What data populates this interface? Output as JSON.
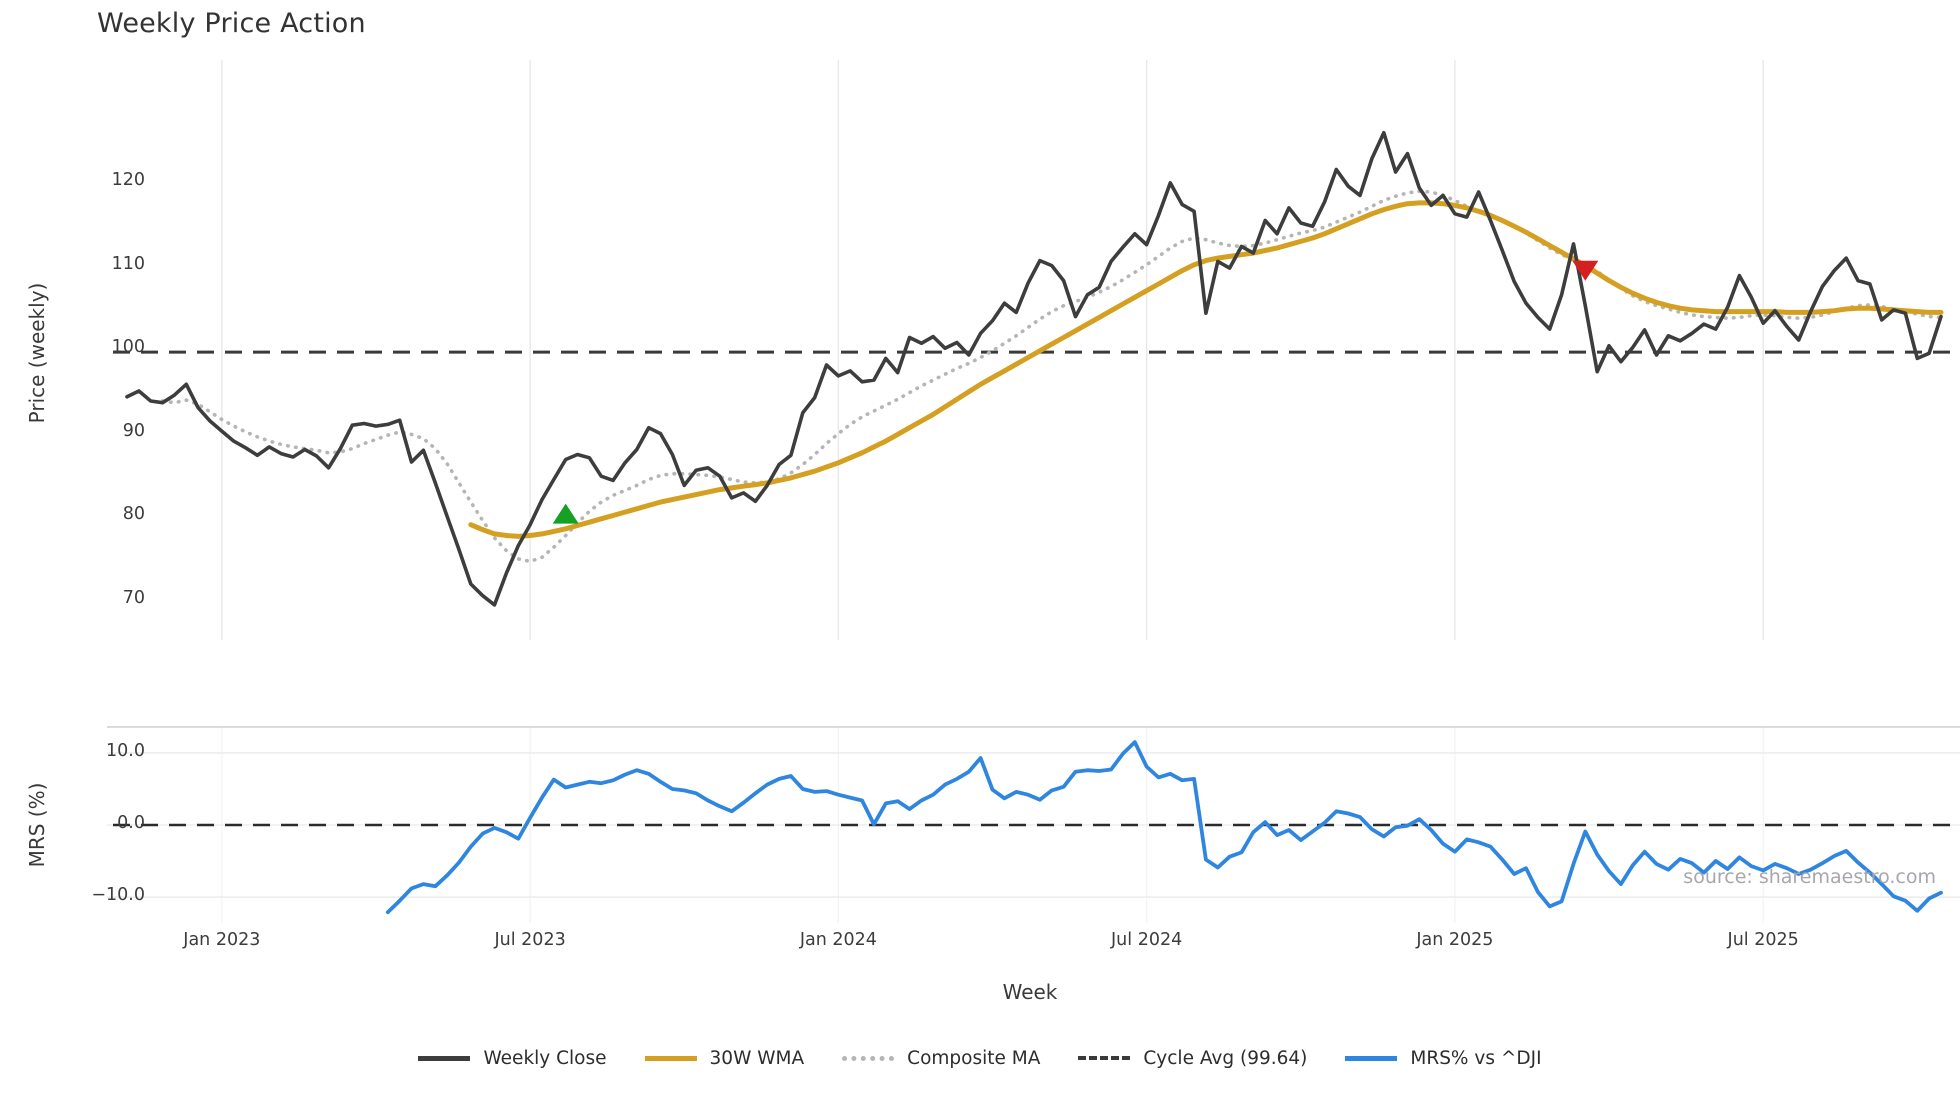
{
  "title": "Weekly Price Action",
  "watermark": "source: sharemaestro.com",
  "colors": {
    "weekly_close": "#3d3d3d",
    "wma_30w": "#d5a021",
    "composite_ma": "#b5b5b5",
    "cycle_avg": "#3a3a3a",
    "mrs_line": "#2f86e0",
    "buy_marker": "#16a125",
    "sell_marker": "#d61f1f",
    "grid": "#e8e8e8"
  },
  "legend": {
    "items": [
      {
        "label": "Weekly Close",
        "color": "#3d3d3d",
        "style": "solid"
      },
      {
        "label": "30W WMA",
        "color": "#d5a021",
        "style": "solid"
      },
      {
        "label": "Composite MA",
        "color": "#b5b5b5",
        "style": "dotted"
      },
      {
        "label": "Cycle Avg (99.64)",
        "color": "#3a3a3a",
        "style": "dashed"
      },
      {
        "label": "MRS% vs ^DJI",
        "color": "#2f86e0",
        "style": "solid"
      }
    ]
  },
  "chart_data": {
    "type": "line",
    "title": "Weekly Price Action",
    "n_points": 154,
    "x_axis": {
      "label": "Week",
      "ticks": [
        {
          "index": 8,
          "label": "Jan 2023"
        },
        {
          "index": 34,
          "label": "Jul 2023"
        },
        {
          "index": 60,
          "label": "Jan 2024"
        },
        {
          "index": 86,
          "label": "Jul 2024"
        },
        {
          "index": 112,
          "label": "Jan 2025"
        },
        {
          "index": 138,
          "label": "Jul 2025"
        }
      ]
    },
    "panels": [
      {
        "name": "price",
        "ylabel": "Price (weekly)",
        "ylim": [
          65.2,
          134.6
        ],
        "grid": "x",
        "yticks": [
          {
            "value": 70,
            "label": "70"
          },
          {
            "value": 80,
            "label": "80"
          },
          {
            "value": 90,
            "label": "90"
          },
          {
            "value": 100,
            "label": "100"
          },
          {
            "value": 110,
            "label": "110"
          },
          {
            "value": 120,
            "label": "120"
          }
        ],
        "series": [
          {
            "name": "Weekly Close",
            "color": "#3d3d3d",
            "style": "solid",
            "width": 3.6,
            "start_index": 0,
            "values": [
              94.3,
              95.0,
              93.8,
              93.6,
              94.5,
              95.8,
              93.0,
              91.4,
              90.2,
              89.0,
              88.2,
              87.3,
              88.3,
              87.5,
              87.1,
              88.0,
              87.2,
              85.8,
              88.1,
              90.9,
              91.1,
              90.8,
              91.0,
              91.5,
              86.5,
              87.9,
              84.0,
              80.0,
              76.0,
              71.9,
              70.5,
              69.4,
              73.2,
              76.5,
              79.0,
              82.0,
              84.4,
              86.8,
              87.4,
              87.0,
              84.8,
              84.3,
              86.4,
              88.0,
              90.6,
              89.9,
              87.4,
              83.7,
              85.5,
              85.8,
              84.8,
              82.2,
              82.8,
              81.8,
              83.7,
              86.2,
              87.3,
              92.4,
              94.2,
              98.1,
              96.8,
              97.4,
              96.1,
              96.3,
              98.9,
              97.2,
              101.4,
              100.7,
              101.5,
              100.1,
              100.8,
              99.3,
              101.9,
              103.4,
              105.5,
              104.4,
              107.9,
              110.6,
              110.0,
              108.2,
              103.9,
              106.5,
              107.4,
              110.5,
              112.2,
              113.8,
              112.5,
              116.0,
              119.9,
              117.3,
              116.5,
              104.3,
              110.5,
              109.7,
              112.3,
              111.5,
              115.4,
              113.8,
              116.9,
              115.1,
              114.7,
              117.6,
              121.5,
              119.5,
              118.4,
              122.8,
              125.9,
              121.2,
              123.4,
              119.3,
              117.2,
              118.4,
              116.2,
              115.8,
              118.8,
              115.4,
              111.8,
              108.1,
              105.5,
              103.8,
              102.4,
              106.5,
              112.6,
              105.2,
              97.3,
              100.4,
              98.5,
              100.2,
              102.3,
              99.3,
              101.6,
              101.0,
              101.9,
              103.0,
              102.4,
              105.0,
              108.8,
              106.2,
              103.1,
              104.6,
              102.7,
              101.1,
              104.5,
              107.5,
              109.4,
              110.9,
              108.2,
              107.8,
              103.5,
              104.7,
              104.3,
              98.9,
              99.5,
              103.9
            ]
          },
          {
            "name": "30W WMA",
            "color": "#d5a021",
            "style": "solid",
            "width": 5,
            "start_index": 29,
            "values": [
              79.0,
              78.4,
              77.9,
              77.7,
              77.6,
              77.7,
              77.9,
              78.2,
              78.5,
              78.9,
              79.3,
              79.7,
              80.1,
              80.5,
              80.9,
              81.3,
              81.7,
              82.0,
              82.3,
              82.6,
              82.9,
              83.2,
              83.4,
              83.6,
              83.8,
              84.0,
              84.3,
              84.6,
              85.0,
              85.4,
              85.9,
              86.4,
              87.0,
              87.6,
              88.3,
              89.0,
              89.8,
              90.6,
              91.4,
              92.2,
              93.1,
              94.0,
              94.9,
              95.8,
              96.6,
              97.4,
              98.2,
              99.0,
              99.8,
              100.6,
              101.4,
              102.2,
              103.0,
              103.8,
              104.6,
              105.4,
              106.2,
              107.0,
              107.8,
              108.6,
              109.4,
              110.1,
              110.6,
              110.9,
              111.1,
              111.3,
              111.5,
              111.8,
              112.1,
              112.5,
              112.9,
              113.3,
              113.8,
              114.4,
              115.0,
              115.6,
              116.2,
              116.7,
              117.1,
              117.4,
              117.5,
              117.5,
              117.4,
              117.2,
              116.9,
              116.5,
              116.0,
              115.4,
              114.7,
              114.0,
              113.2,
              112.4,
              111.6,
              110.8,
              110.0,
              109.1,
              108.2,
              107.4,
              106.7,
              106.1,
              105.6,
              105.2,
              104.9,
              104.7,
              104.6,
              104.5,
              104.5,
              104.5,
              104.5,
              104.5,
              104.5,
              104.4,
              104.4,
              104.4,
              104.5,
              104.6,
              104.8,
              104.9,
              104.9,
              104.8,
              104.7,
              104.6,
              104.5,
              104.4,
              104.4
            ]
          },
          {
            "name": "Composite MA",
            "color": "#b5b5b5",
            "style": "dotted",
            "width": 3.6,
            "start_index": 3,
            "values": [
              93.8,
              93.6,
              93.9,
              93.4,
              92.5,
              91.6,
              90.8,
              90.1,
              89.5,
              89.0,
              88.6,
              88.3,
              88.1,
              87.9,
              87.6,
              87.7,
              88.1,
              88.7,
              89.2,
              89.7,
              90.1,
              89.8,
              89.3,
              88.1,
              86.3,
              84.0,
              81.7,
              79.5,
              77.4,
              75.9,
              74.9,
              74.6,
              75.1,
              76.3,
              77.7,
              79.2,
              80.6,
              81.7,
              82.5,
              83.1,
              83.7,
              84.4,
              84.9,
              85.1,
              85.1,
              85.0,
              84.9,
              84.7,
              84.4,
              84.1,
              84.0,
              84.1,
              84.5,
              85.2,
              86.2,
              87.4,
              88.7,
              89.9,
              91.0,
              91.9,
              92.6,
              93.3,
              94.0,
              94.8,
              95.6,
              96.3,
              97.0,
              97.7,
              98.3,
              99.0,
              99.8,
              100.7,
              101.6,
              102.6,
              103.6,
              104.5,
              105.2,
              105.7,
              106.2,
              106.8,
              107.5,
              108.3,
              109.2,
              110.1,
              111.1,
              112.1,
              112.9,
              113.3,
              113.1,
              112.7,
              112.4,
              112.3,
              112.4,
              112.7,
              113.1,
              113.5,
              113.9,
              114.2,
              114.6,
              115.2,
              115.8,
              116.4,
              117.1,
              117.8,
              118.3,
              118.7,
              118.9,
              118.8,
              118.4,
              117.8,
              117.1,
              116.5,
              116.0,
              115.4,
              114.7,
              113.9,
              113.0,
              112.1,
              111.3,
              110.7,
              110.1,
              109.3,
              108.3,
              107.3,
              106.4,
              105.7,
              105.2,
              104.8,
              104.4,
              104.1,
              103.9,
              103.8,
              103.7,
              103.8,
              104.0,
              104.1,
              104.0,
              103.8,
              103.7,
              103.8,
              104.1,
              104.5,
              104.9,
              105.2,
              105.3,
              105.1,
              104.8,
              104.5,
              104.2,
              103.9,
              103.8
            ]
          },
          {
            "name": "Cycle Avg",
            "color": "#3a3a3a",
            "style": "dashed",
            "width": 3,
            "constant": 99.64
          }
        ],
        "markers": [
          {
            "name": "buy-signal",
            "shape": "triangle-up",
            "color": "#16a125",
            "index": 37,
            "value": 80.2
          },
          {
            "name": "sell-signal",
            "shape": "triangle-down",
            "color": "#d61f1f",
            "index": 123,
            "value": 109.5
          }
        ]
      },
      {
        "name": "mrs",
        "ylabel": "MRS (%)",
        "ylim": [
          -13.6,
          13.6
        ],
        "grid": "y",
        "yticks": [
          {
            "value": 10,
            "label": "10.0"
          },
          {
            "value": 0,
            "label": "0.0"
          },
          {
            "value": -10,
            "label": "−10.0"
          }
        ],
        "series": [
          {
            "name": "MRS% vs ^DJI",
            "color": "#2f86e0",
            "style": "solid",
            "width": 3.8,
            "start_index": 22,
            "values": [
              -12.1,
              -10.5,
              -8.8,
              -8.2,
              -8.5,
              -7.0,
              -5.2,
              -3.0,
              -1.2,
              -0.4,
              -1.0,
              -1.9,
              1.0,
              3.8,
              6.3,
              5.2,
              5.6,
              6.0,
              5.8,
              6.2,
              7.0,
              7.6,
              7.1,
              6.0,
              5.0,
              4.8,
              4.4,
              3.4,
              2.6,
              1.9,
              3.1,
              4.4,
              5.6,
              6.4,
              6.8,
              5.0,
              4.6,
              4.7,
              4.2,
              3.8,
              3.4,
              0.1,
              3.0,
              3.3,
              2.2,
              3.4,
              4.2,
              5.6,
              6.4,
              7.4,
              9.3,
              4.9,
              3.7,
              4.6,
              4.2,
              3.5,
              4.8,
              5.3,
              7.4,
              7.6,
              7.5,
              7.7,
              9.9,
              11.5,
              8.1,
              6.6,
              7.1,
              6.2,
              6.4,
              -4.8,
              -5.9,
              -4.4,
              -3.8,
              -1.0,
              0.4,
              -1.4,
              -0.7,
              -2.1,
              -0.9,
              0.3,
              1.9,
              1.6,
              1.1,
              -0.6,
              -1.6,
              -0.3,
              -0.1,
              0.8,
              -0.7,
              -2.6,
              -3.7,
              -2.0,
              -2.4,
              -3.0,
              -4.8,
              -6.8,
              -6.0,
              -9.3,
              -11.3,
              -10.6,
              -5.4,
              -0.9,
              -4.1,
              -6.4,
              -8.2,
              -5.6,
              -3.7,
              -5.4,
              -6.2,
              -4.7,
              -5.3,
              -6.6,
              -5.0,
              -6.1,
              -4.5,
              -5.7,
              -6.3,
              -5.4,
              -6.0,
              -6.8,
              -6.2,
              -5.3,
              -4.3,
              -3.6,
              -5.2,
              -6.6,
              -8.2,
              -9.9,
              -10.5,
              -11.9,
              -10.2,
              -9.4
            ]
          },
          {
            "name": "Zero Line",
            "color": "#2b2b2b",
            "style": "dashed",
            "width": 2.6,
            "constant": 0
          }
        ]
      }
    ]
  }
}
